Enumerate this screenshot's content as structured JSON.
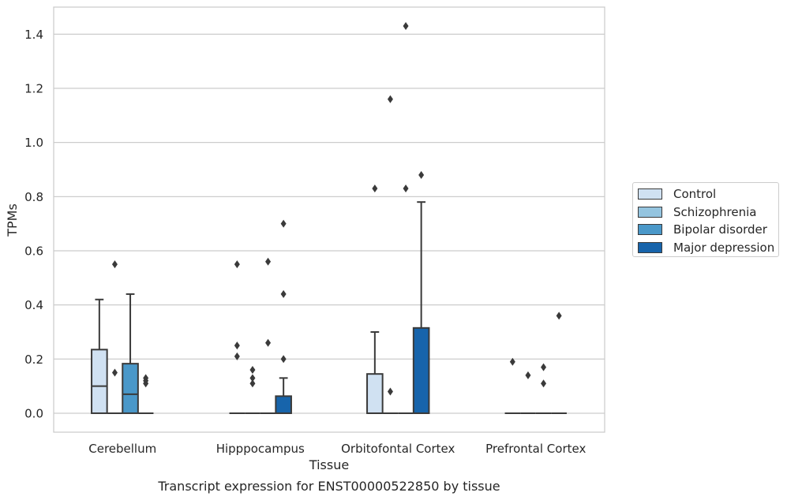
{
  "chart_data": {
    "type": "box",
    "caption": "Transcript expression for ENST00000522850 by tissue",
    "xlabel": "Tissue",
    "ylabel": "TPMs",
    "ylim": [
      -0.07,
      1.5
    ],
    "yticks": [
      0.0,
      0.2,
      0.4,
      0.6,
      0.8,
      1.0,
      1.2,
      1.4
    ],
    "ytick_labels": [
      "0.0",
      "0.2",
      "0.4",
      "0.6",
      "0.8",
      "1.0",
      "1.2",
      "1.4"
    ],
    "grid": "horizontal",
    "legend_position": "right",
    "categories": [
      "Cerebellum",
      "Hipppocampus",
      "Orbitofontal Cortex",
      "Prefrontal Cortex"
    ],
    "series": [
      {
        "name": "Control",
        "color": "#d0e1f2",
        "boxes": [
          {
            "min": 0.0,
            "q1": 0.0,
            "median": 0.1,
            "q3": 0.235,
            "max": 0.42,
            "outliers": []
          },
          {
            "min": 0.0,
            "q1": 0.0,
            "median": 0.0,
            "q3": 0.0,
            "max": 0.0,
            "outliers": [
              0.55,
              0.25,
              0.21
            ]
          },
          {
            "min": 0.0,
            "q1": 0.0,
            "median": 0.0,
            "q3": 0.145,
            "max": 0.3,
            "outliers": [
              0.83
            ]
          },
          {
            "min": 0.0,
            "q1": 0.0,
            "median": 0.0,
            "q3": 0.0,
            "max": 0.0,
            "outliers": [
              0.19
            ]
          }
        ]
      },
      {
        "name": "Schizophrenia",
        "color": "#94c4df",
        "boxes": [
          {
            "min": 0.0,
            "q1": 0.0,
            "median": 0.0,
            "q3": 0.0,
            "max": 0.0,
            "outliers": [
              0.55,
              0.15
            ]
          },
          {
            "min": 0.0,
            "q1": 0.0,
            "median": 0.0,
            "q3": 0.0,
            "max": 0.0,
            "outliers": [
              0.16,
              0.13,
              0.11
            ]
          },
          {
            "min": 0.0,
            "q1": 0.0,
            "median": 0.0,
            "q3": 0.0,
            "max": 0.0,
            "outliers": [
              1.16,
              0.08
            ]
          },
          {
            "min": 0.0,
            "q1": 0.0,
            "median": 0.0,
            "q3": 0.0,
            "max": 0.0,
            "outliers": [
              0.14
            ]
          }
        ]
      },
      {
        "name": "Bipolar disorder",
        "color": "#4a98c9",
        "boxes": [
          {
            "min": 0.0,
            "q1": 0.0,
            "median": 0.07,
            "q3": 0.183,
            "max": 0.44,
            "outliers": []
          },
          {
            "min": 0.0,
            "q1": 0.0,
            "median": 0.0,
            "q3": 0.0,
            "max": 0.0,
            "outliers": [
              0.56,
              0.26
            ]
          },
          {
            "min": 0.0,
            "q1": 0.0,
            "median": 0.0,
            "q3": 0.0,
            "max": 0.0,
            "outliers": [
              1.43,
              0.83
            ]
          },
          {
            "min": 0.0,
            "q1": 0.0,
            "median": 0.0,
            "q3": 0.0,
            "max": 0.0,
            "outliers": [
              0.17,
              0.11
            ]
          }
        ]
      },
      {
        "name": "Major depression",
        "color": "#1764ab",
        "boxes": [
          {
            "min": 0.0,
            "q1": 0.0,
            "median": 0.0,
            "q3": 0.0,
            "max": 0.0,
            "outliers": [
              0.13,
              0.12,
              0.11
            ]
          },
          {
            "min": 0.0,
            "q1": 0.0,
            "median": 0.0,
            "q3": 0.063,
            "max": 0.13,
            "outliers": [
              0.7,
              0.44,
              0.2
            ]
          },
          {
            "min": 0.0,
            "q1": 0.0,
            "median": 0.0,
            "q3": 0.315,
            "max": 0.78,
            "outliers": [
              0.88
            ]
          },
          {
            "min": 0.0,
            "q1": 0.0,
            "median": 0.0,
            "q3": 0.0,
            "max": 0.0,
            "outliers": [
              0.36
            ]
          }
        ]
      }
    ]
  }
}
